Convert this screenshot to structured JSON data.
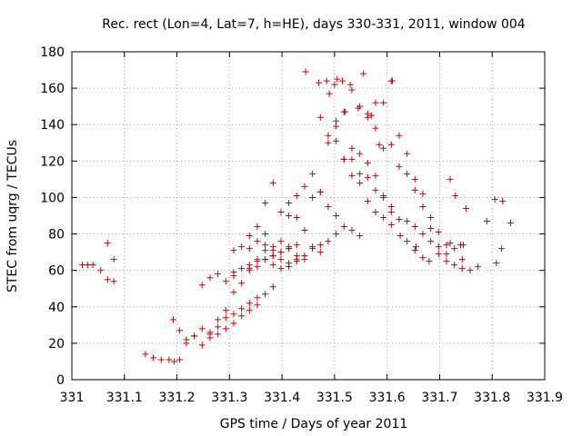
{
  "chart_data": {
    "type": "scatter",
    "title": "Rec. rect (Lon=4, Lat=7, h=HE), days 330-331, 2011, window 004",
    "xlabel": "GPS time / Days of year 2011",
    "ylabel": "STEC from uqrg / TECUs",
    "xlim": [
      331,
      331.9
    ],
    "ylim": [
      0,
      180
    ],
    "xticks": [
      "331",
      "331.1",
      "331.2",
      "331.3",
      "331.4",
      "331.5",
      "331.6",
      "331.7",
      "331.8",
      "331.9"
    ],
    "yticks": [
      "0",
      "20",
      "40",
      "60",
      "80",
      "100",
      "120",
      "140",
      "160",
      "180"
    ],
    "grid": true,
    "marker": "+",
    "color": "#cc0000",
    "x": [
      331.02,
      331.03,
      331.04,
      331.055,
      331.068,
      331.08,
      331.068,
      331.08,
      331.14,
      331.155,
      331.17,
      331.185,
      331.195,
      331.205,
      331.193,
      331.205,
      331.218,
      331.233,
      331.248,
      331.263,
      331.278,
      331.293,
      331.308,
      331.323,
      331.338,
      331.353,
      331.218,
      331.233,
      331.248,
      331.263,
      331.278,
      331.293,
      331.308,
      331.323,
      331.338,
      331.353,
      331.368,
      331.383,
      331.248,
      331.263,
      331.278,
      331.293,
      331.308,
      331.323,
      331.338,
      331.353,
      331.368,
      331.383,
      331.398,
      331.413,
      331.263,
      331.278,
      331.293,
      331.308,
      331.323,
      331.338,
      331.353,
      331.368,
      331.383,
      331.398,
      331.413,
      331.428,
      331.308,
      331.323,
      331.338,
      331.353,
      331.368,
      331.383,
      331.398,
      331.413,
      331.428,
      331.443,
      331.308,
      331.338,
      331.353,
      331.368,
      331.383,
      331.398,
      331.413,
      331.428,
      331.443,
      331.458,
      331.473,
      331.338,
      331.353,
      331.368,
      331.383,
      331.398,
      331.413,
      331.428,
      331.443,
      331.458,
      331.473,
      331.488,
      331.503,
      331.368,
      331.383,
      331.398,
      331.413,
      331.428,
      331.443,
      331.458,
      331.473,
      331.488,
      331.503,
      331.518,
      331.533,
      331.548,
      331.413,
      331.428,
      331.443,
      331.458,
      331.473,
      331.488,
      331.503,
      331.518,
      331.533,
      331.548,
      331.563,
      331.578,
      331.593,
      331.608,
      331.473,
      331.488,
      331.503,
      331.518,
      331.533,
      331.548,
      331.563,
      331.578,
      331.593,
      331.608,
      331.623,
      331.638,
      331.653,
      331.668,
      331.503,
      331.518,
      331.533,
      331.548,
      331.563,
      331.578,
      331.593,
      331.608,
      331.623,
      331.638,
      331.653,
      331.668,
      331.683,
      331.698,
      331.713,
      331.533,
      331.548,
      331.563,
      331.578,
      331.593,
      331.608,
      331.623,
      331.638,
      331.653,
      331.668,
      331.683,
      331.698,
      331.713,
      331.728,
      331.743,
      331.563,
      331.578,
      331.593,
      331.608,
      331.623,
      331.638,
      331.653,
      331.668,
      331.683,
      331.698,
      331.713,
      331.728,
      331.743,
      331.758,
      331.773,
      331.445,
      331.5,
      331.515,
      331.53,
      331.555,
      331.61,
      331.72,
      331.73,
      331.75,
      331.79,
      331.805,
      331.82,
      331.835,
      331.818,
      331.808,
      331.72,
      331.74,
      331.745,
      331.47,
      331.485,
      331.49,
      331.505,
      331.52,
      331.545,
      331.57,
      331.585,
      331.625,
      331.655,
      331.68
    ],
    "y": [
      63,
      63,
      63,
      60,
      55,
      54,
      75,
      66,
      14,
      12,
      11,
      11,
      10,
      11,
      33,
      27,
      20,
      24,
      19,
      23,
      25,
      28,
      31,
      35,
      38,
      41,
      22,
      24,
      28,
      26,
      29,
      34,
      36,
      39,
      42,
      45,
      47,
      51,
      52,
      56,
      58,
      54,
      57,
      61,
      63,
      65,
      66,
      68,
      70,
      72,
      25,
      33,
      38,
      48,
      53,
      61,
      62,
      66,
      68,
      70,
      73,
      74,
      71,
      73,
      79,
      84,
      74,
      71,
      66,
      62,
      65,
      68,
      59,
      72,
      76,
      80,
      73,
      76,
      72,
      68,
      66,
      73,
      70,
      60,
      66,
      71,
      63,
      61,
      64,
      66,
      68,
      72,
      74,
      76,
      80,
      97,
      108,
      92,
      90,
      89,
      82,
      100,
      103,
      95,
      90,
      84,
      82,
      79,
      97,
      101,
      106,
      113,
      103,
      134,
      139,
      147,
      121,
      113,
      111,
      104,
      100,
      95,
      144,
      130,
      131,
      121,
      112,
      108,
      98,
      92,
      89,
      85,
      88,
      76,
      71,
      67,
      142,
      121,
      127,
      124,
      119,
      112,
      101,
      92,
      88,
      87,
      84,
      80,
      76,
      73,
      69,
      159,
      150,
      144,
      138,
      127,
      129,
      117,
      113,
      110,
      102,
      89,
      81,
      74,
      72,
      66,
      146,
      152,
      152,
      164,
      134,
      124,
      104,
      95,
      83,
      69,
      65,
      63,
      61,
      60,
      62,
      169,
      162,
      164,
      162,
      168,
      164,
      110,
      101,
      94,
      87,
      99,
      98,
      86,
      72,
      64,
      75,
      74,
      74,
      163,
      164,
      157,
      165,
      147,
      149,
      145,
      129,
      79,
      73,
      65
    ]
  }
}
